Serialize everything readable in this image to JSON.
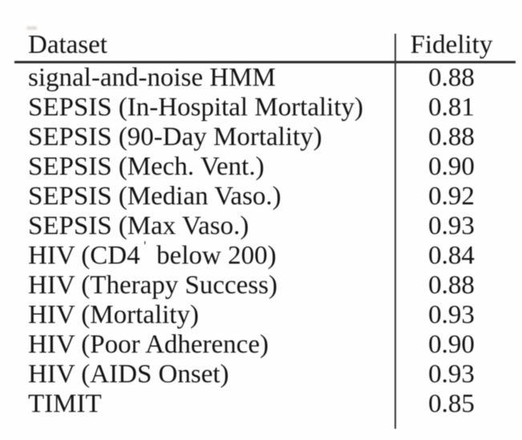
{
  "colors": {
    "background": "#fefefe",
    "text": "#141414",
    "rule": "#2b2b2b"
  },
  "table": {
    "columns": [
      {
        "label": "Dataset"
      },
      {
        "label": "Fidelity"
      }
    ],
    "rows": [
      {
        "dataset": "signal-and-noise HMM",
        "fidelity": "0.88"
      },
      {
        "dataset": "SEPSIS (In-Hospital Mortality)",
        "fidelity": "0.81"
      },
      {
        "dataset": "SEPSIS (90-Day Mortality)",
        "fidelity": "0.88"
      },
      {
        "dataset": "SEPSIS (Mech. Vent.)",
        "fidelity": "0.90"
      },
      {
        "dataset": "SEPSIS (Median Vaso.)",
        "fidelity": "0.92"
      },
      {
        "dataset": "SEPSIS (Max Vaso.)",
        "fidelity": "0.93"
      },
      {
        "dataset_prefix": "HIV (CD4",
        "dataset_sup": "+",
        "dataset_suffix": " below 200)",
        "fidelity": "0.84"
      },
      {
        "dataset": "HIV (Therapy Success)",
        "fidelity": "0.88"
      },
      {
        "dataset": "HIV (Mortality)",
        "fidelity": "0.93"
      },
      {
        "dataset": "HIV (Poor Adherence)",
        "fidelity": "0.90"
      },
      {
        "dataset": "HIV (AIDS Onset)",
        "fidelity": "0.93"
      },
      {
        "dataset": "TIMIT",
        "fidelity": "0.85"
      }
    ]
  }
}
